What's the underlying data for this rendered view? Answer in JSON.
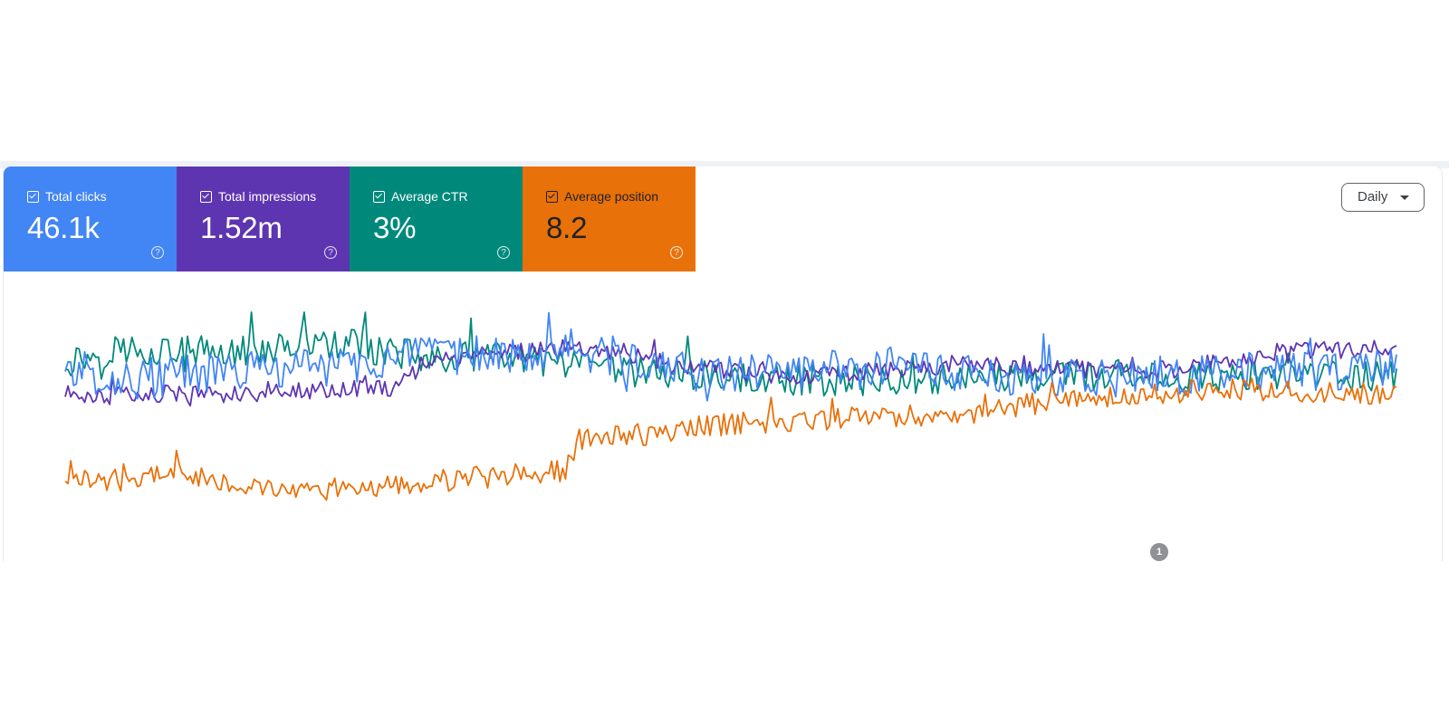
{
  "cards": [
    {
      "label": "Total clicks",
      "value": "46.1k",
      "color": "#4285f4"
    },
    {
      "label": "Total impressions",
      "value": "1.52m",
      "color": "#5e35b1"
    },
    {
      "label": "Average CTR",
      "value": "3%",
      "color": "#00897b"
    },
    {
      "label": "Average position",
      "value": "8.2",
      "color": "#e8710a"
    }
  ],
  "dropdown": {
    "label": "Daily"
  },
  "annotation": {
    "label": "1"
  },
  "chart_data": {
    "type": "line",
    "x_count": 480,
    "y_scale": "normalized_independent_per_series",
    "grid": false,
    "legend": "none",
    "series": [
      {
        "color": "#00897b",
        "anchors": [
          [
            0,
            0.78
          ],
          [
            20,
            0.84
          ],
          [
            40,
            0.83
          ],
          [
            60,
            0.82
          ],
          [
            80,
            0.85
          ],
          [
            100,
            0.86
          ],
          [
            130,
            0.8
          ],
          [
            160,
            0.8
          ],
          [
            180,
            0.76
          ],
          [
            200,
            0.74
          ],
          [
            220,
            0.73
          ],
          [
            250,
            0.7
          ],
          [
            280,
            0.7
          ],
          [
            320,
            0.71
          ],
          [
            360,
            0.72
          ],
          [
            400,
            0.72
          ],
          [
            440,
            0.71
          ],
          [
            479,
            0.72
          ]
        ],
        "jitter": 0.07
      },
      {
        "color": "#5e35b1",
        "anchors": [
          [
            0,
            0.64
          ],
          [
            20,
            0.63
          ],
          [
            40,
            0.64
          ],
          [
            60,
            0.64
          ],
          [
            80,
            0.65
          ],
          [
            100,
            0.66
          ],
          [
            120,
            0.67
          ],
          [
            130,
            0.79
          ],
          [
            160,
            0.82
          ],
          [
            180,
            0.84
          ],
          [
            200,
            0.83
          ],
          [
            220,
            0.76
          ],
          [
            260,
            0.72
          ],
          [
            280,
            0.73
          ],
          [
            320,
            0.77
          ],
          [
            360,
            0.75
          ],
          [
            400,
            0.75
          ],
          [
            440,
            0.83
          ],
          [
            479,
            0.84
          ]
        ],
        "jitter": 0.04
      },
      {
        "color": "#4285f4",
        "anchors": [
          [
            0,
            0.76
          ],
          [
            20,
            0.7
          ],
          [
            40,
            0.72
          ],
          [
            60,
            0.74
          ],
          [
            80,
            0.75
          ],
          [
            100,
            0.77
          ],
          [
            130,
            0.8
          ],
          [
            160,
            0.82
          ],
          [
            180,
            0.84
          ],
          [
            200,
            0.8
          ],
          [
            230,
            0.72
          ],
          [
            260,
            0.74
          ],
          [
            300,
            0.75
          ],
          [
            350,
            0.7
          ],
          [
            400,
            0.72
          ],
          [
            440,
            0.74
          ],
          [
            479,
            0.75
          ]
        ],
        "jitter": 0.09
      },
      {
        "color": "#e8710a",
        "anchors": [
          [
            0,
            0.26
          ],
          [
            20,
            0.26
          ],
          [
            40,
            0.3
          ],
          [
            60,
            0.25
          ],
          [
            80,
            0.2
          ],
          [
            100,
            0.22
          ],
          [
            120,
            0.24
          ],
          [
            140,
            0.26
          ],
          [
            180,
            0.3
          ],
          [
            185,
            0.44
          ],
          [
            210,
            0.46
          ],
          [
            230,
            0.5
          ],
          [
            260,
            0.52
          ],
          [
            300,
            0.54
          ],
          [
            330,
            0.56
          ],
          [
            360,
            0.62
          ],
          [
            400,
            0.65
          ],
          [
            430,
            0.66
          ],
          [
            479,
            0.64
          ]
        ],
        "jitter": 0.05
      }
    ]
  }
}
